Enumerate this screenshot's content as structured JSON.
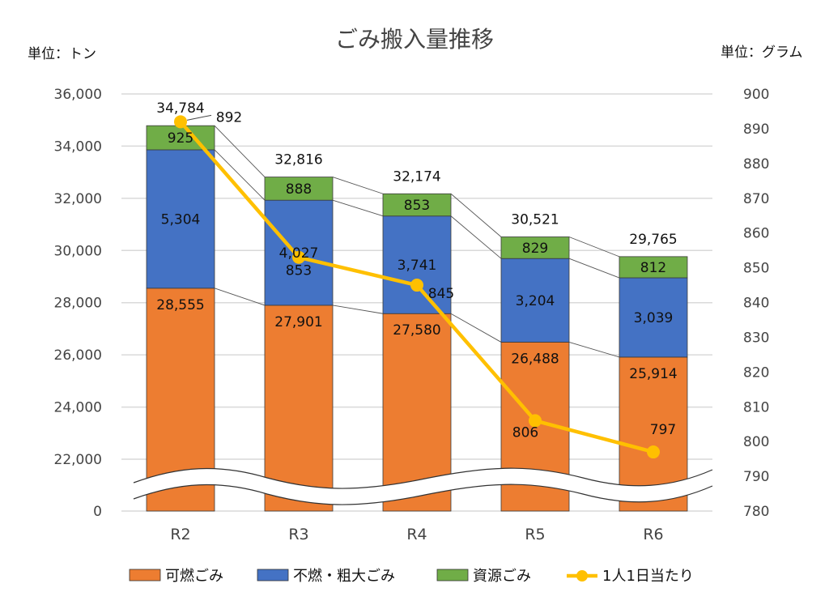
{
  "chart_data": {
    "type": "bar",
    "title": "ごみ搬入量推移",
    "left_unit_label": "単位：トン",
    "right_unit_label": "単位：グラム",
    "categories": [
      "R2",
      "R3",
      "R4",
      "R5",
      "R6"
    ],
    "stacked": true,
    "series": [
      {
        "name": "可燃ごみ",
        "type": "bar",
        "axis": "left",
        "color": "#ed7d31",
        "values": [
          28555,
          27901,
          27580,
          26488,
          25914
        ]
      },
      {
        "name": "不燃・粗大ごみ",
        "type": "bar",
        "axis": "left",
        "color": "#4472c4",
        "values": [
          5304,
          4027,
          3741,
          3204,
          3039
        ]
      },
      {
        "name": "資源ごみ",
        "type": "bar",
        "axis": "left",
        "color": "#70ad47",
        "values": [
          925,
          888,
          853,
          829,
          812
        ]
      },
      {
        "name": "1人1日当たり",
        "type": "line",
        "axis": "right",
        "color": "#ffc000",
        "values": [
          892,
          853,
          845,
          806,
          797
        ]
      }
    ],
    "totals": [
      34784,
      32816,
      32174,
      30521,
      29765
    ],
    "totals_labels": [
      "34,784",
      "32,816",
      "32,174",
      "30,521",
      "29,765"
    ],
    "left_axis": {
      "range": [
        20000,
        36000
      ],
      "axis_break": true,
      "ticks": [
        22000,
        24000,
        26000,
        28000,
        30000,
        32000,
        34000,
        36000
      ],
      "tick_labels": [
        "0",
        "22,000",
        "24,000",
        "26,000",
        "28,000",
        "30,000",
        "32,000",
        "34,000",
        "36,000"
      ]
    },
    "right_axis": {
      "range": [
        780,
        900
      ],
      "ticks": [
        780,
        790,
        800,
        810,
        820,
        830,
        840,
        850,
        860,
        870,
        880,
        890,
        900
      ],
      "tick_labels": [
        "780",
        "790",
        "800",
        "810",
        "820",
        "830",
        "840",
        "850",
        "860",
        "870",
        "880",
        "890",
        "900"
      ]
    },
    "grid": true,
    "legend_position": "bottom"
  }
}
